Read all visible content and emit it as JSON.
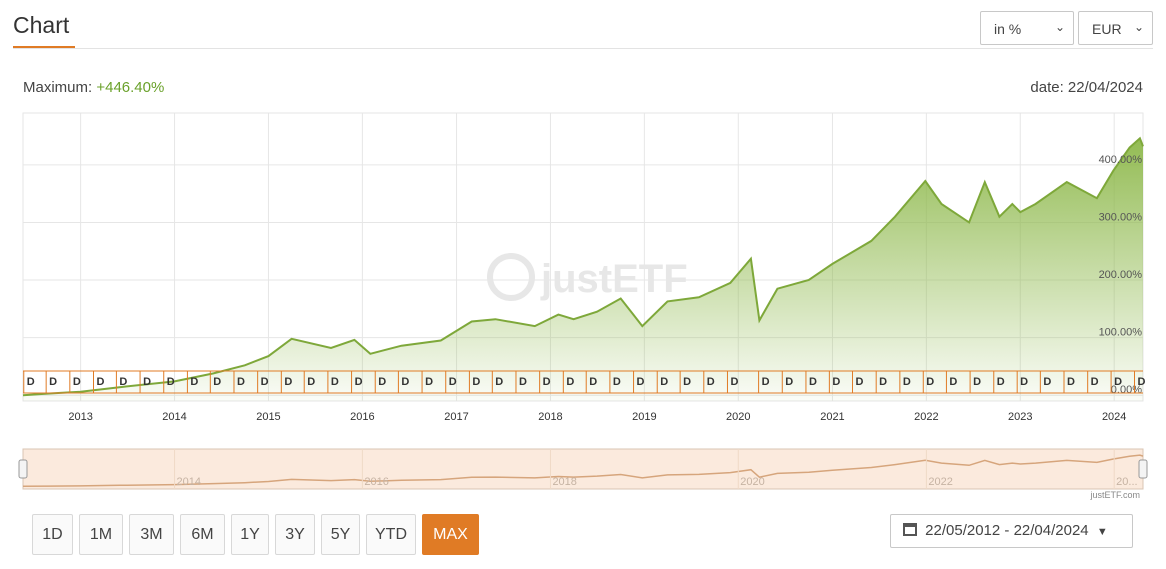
{
  "header": {
    "title": "Chart"
  },
  "controls": {
    "unit": {
      "value": "in %"
    },
    "currency": {
      "value": "EUR"
    }
  },
  "summary": {
    "max_prefix": "Maximum:",
    "max_value": "+446.40%",
    "date_label": "date: 22/04/2024"
  },
  "watermark": "justETF",
  "navigator_credit": "justETF.com",
  "navigator_years": [
    "2014",
    "2016",
    "2018",
    "2020",
    "2022",
    "20..."
  ],
  "range_buttons": [
    {
      "label": "1D",
      "active": false
    },
    {
      "label": "1M",
      "active": false
    },
    {
      "label": "3M",
      "active": false
    },
    {
      "label": "6M",
      "active": false
    },
    {
      "label": "1Y",
      "active": false
    },
    {
      "label": "3Y",
      "active": false
    },
    {
      "label": "5Y",
      "active": false
    },
    {
      "label": "YTD",
      "active": false
    },
    {
      "label": "MAX",
      "active": true
    }
  ],
  "date_range": {
    "value": "22/05/2012 - 22/04/2024"
  },
  "colors": {
    "accent": "#e07b25",
    "line": "#7ea83a",
    "positive": "#6aa12a",
    "navigator_bg": "#fbeadd"
  },
  "chart_data": {
    "type": "area",
    "title": "",
    "xlabel": "",
    "ylabel": "",
    "x_ticks": [
      "2013",
      "2014",
      "2015",
      "2016",
      "2017",
      "2018",
      "2019",
      "2020",
      "2021",
      "2022",
      "2023",
      "2024"
    ],
    "y_ticks": [
      "0.00%",
      "100.00%",
      "200.00%",
      "300.00%",
      "400.00%"
    ],
    "ylim": [
      -10,
      490
    ],
    "xlim": [
      "2012-05-22",
      "2024-04-22"
    ],
    "series": [
      {
        "values": [
          {
            "x": "2012-05-22",
            "y": 0
          },
          {
            "x": "2012-09-01",
            "y": 3
          },
          {
            "x": "2013-01-01",
            "y": 6
          },
          {
            "x": "2013-06-01",
            "y": 14
          },
          {
            "x": "2014-01-01",
            "y": 24
          },
          {
            "x": "2014-06-01",
            "y": 38
          },
          {
            "x": "2014-10-01",
            "y": 52
          },
          {
            "x": "2015-01-01",
            "y": 68
          },
          {
            "x": "2015-04-01",
            "y": 98
          },
          {
            "x": "2015-09-01",
            "y": 82
          },
          {
            "x": "2015-12-01",
            "y": 96
          },
          {
            "x": "2016-02-01",
            "y": 72
          },
          {
            "x": "2016-06-01",
            "y": 86
          },
          {
            "x": "2016-11-01",
            "y": 95
          },
          {
            "x": "2017-03-01",
            "y": 128
          },
          {
            "x": "2017-06-01",
            "y": 132
          },
          {
            "x": "2017-11-01",
            "y": 120
          },
          {
            "x": "2018-02-01",
            "y": 140
          },
          {
            "x": "2018-04-01",
            "y": 132
          },
          {
            "x": "2018-07-01",
            "y": 145
          },
          {
            "x": "2018-10-01",
            "y": 168
          },
          {
            "x": "2018-12-24",
            "y": 120
          },
          {
            "x": "2019-04-01",
            "y": 163
          },
          {
            "x": "2019-08-01",
            "y": 170
          },
          {
            "x": "2019-12-01",
            "y": 195
          },
          {
            "x": "2020-02-19",
            "y": 237
          },
          {
            "x": "2020-03-23",
            "y": 130
          },
          {
            "x": "2020-06-01",
            "y": 185
          },
          {
            "x": "2020-10-01",
            "y": 200
          },
          {
            "x": "2021-01-01",
            "y": 228
          },
          {
            "x": "2021-06-01",
            "y": 268
          },
          {
            "x": "2021-09-01",
            "y": 310
          },
          {
            "x": "2021-12-28",
            "y": 372
          },
          {
            "x": "2022-03-01",
            "y": 332
          },
          {
            "x": "2022-06-16",
            "y": 300
          },
          {
            "x": "2022-08-16",
            "y": 370
          },
          {
            "x": "2022-10-12",
            "y": 310
          },
          {
            "x": "2022-12-01",
            "y": 332
          },
          {
            "x": "2023-01-01",
            "y": 318
          },
          {
            "x": "2023-03-01",
            "y": 332
          },
          {
            "x": "2023-07-01",
            "y": 370
          },
          {
            "x": "2023-10-26",
            "y": 342
          },
          {
            "x": "2023-12-29",
            "y": 390
          },
          {
            "x": "2024-03-01",
            "y": 430
          },
          {
            "x": "2024-04-10",
            "y": 446
          },
          {
            "x": "2024-04-22",
            "y": 432
          }
        ]
      }
    ],
    "event_markers": {
      "label": "D",
      "dates": [
        "2012-05-25",
        "2012-08-20",
        "2012-11-20",
        "2013-02-20",
        "2013-05-20",
        "2013-08-20",
        "2013-11-20",
        "2014-02-20",
        "2014-05-20",
        "2014-08-20",
        "2014-11-20",
        "2015-02-20",
        "2015-05-20",
        "2015-08-20",
        "2015-11-20",
        "2016-02-20",
        "2016-05-20",
        "2016-08-20",
        "2016-11-20",
        "2017-02-20",
        "2017-05-20",
        "2017-08-20",
        "2017-11-20",
        "2018-02-20",
        "2018-05-20",
        "2018-08-20",
        "2018-11-20",
        "2019-02-20",
        "2019-05-20",
        "2019-08-20",
        "2019-11-20",
        "2020-03-20",
        "2020-06-20",
        "2020-09-20",
        "2020-12-20",
        "2021-03-20",
        "2021-06-20",
        "2021-09-20",
        "2021-12-20",
        "2022-03-20",
        "2022-06-20",
        "2022-09-20",
        "2022-12-20",
        "2023-03-20",
        "2023-06-20",
        "2023-09-20",
        "2023-12-20",
        "2024-03-20"
      ]
    },
    "grid": true,
    "legend": "none"
  }
}
